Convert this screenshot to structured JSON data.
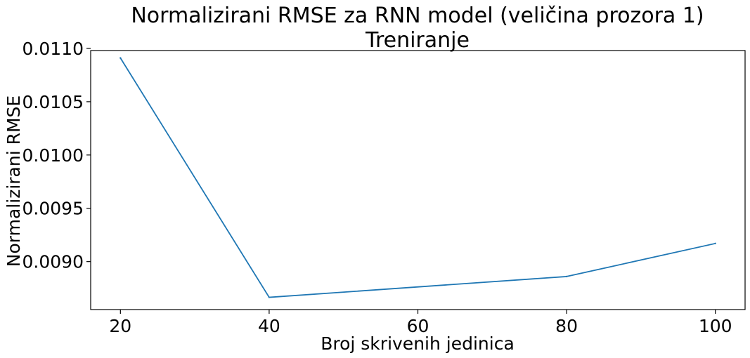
{
  "chart_data": {
    "type": "line",
    "title": "Normalizirani RMSE za RNN model (veličina prozora 1)",
    "subtitle": "Treniranje",
    "xlabel": "Broj skrivenih jedinica",
    "ylabel": "Normalizirani RMSE",
    "x": [
      20,
      40,
      80,
      100
    ],
    "series": [
      {
        "values": [
          0.01091,
          0.008665,
          0.00886,
          0.00917
        ],
        "color": "#1f77b4"
      }
    ],
    "xlim": [
      16,
      104
    ],
    "ylim": [
      0.00855,
      0.01098
    ],
    "xticks": [
      20,
      40,
      60,
      80,
      100
    ],
    "xtick_labels": [
      "20",
      "40",
      "60",
      "80",
      "100"
    ],
    "yticks": [
      0.009,
      0.0095,
      0.01,
      0.0105,
      0.011
    ],
    "ytick_labels": [
      "0.0090",
      "0.0095",
      "0.0100",
      "0.0105",
      "0.0110"
    ],
    "grid": false,
    "legend": false
  }
}
